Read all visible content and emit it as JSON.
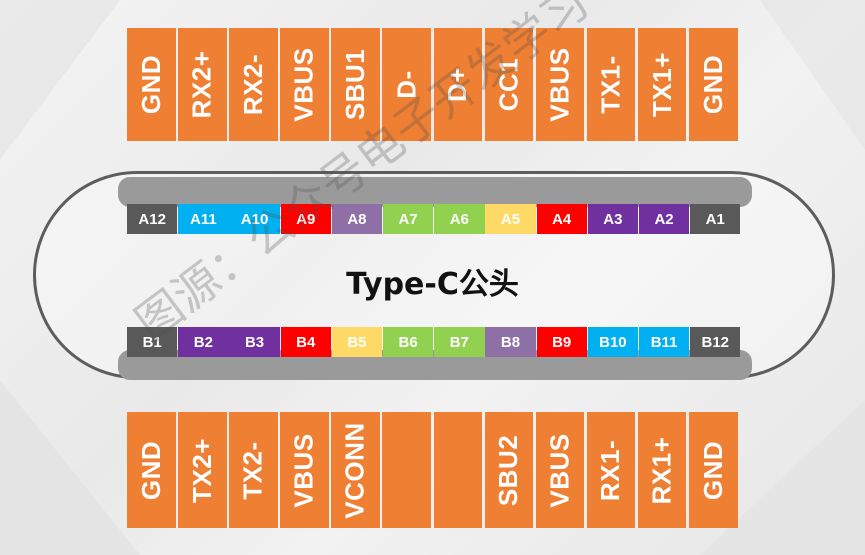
{
  "top_labels": [
    "GND",
    "RX2+",
    "RX2-",
    "VBUS",
    "SBU1",
    "D-",
    "D+",
    "CC1",
    "VBUS",
    "TX1-",
    "TX1+",
    "GND"
  ],
  "bottom_labels": [
    "GND",
    "TX2+",
    "TX2-",
    "VBUS",
    "VCONN",
    "",
    "",
    "SBU2",
    "VBUS",
    "RX1-",
    "RX1+",
    "GND"
  ],
  "pins_a": [
    {
      "label": "A12",
      "color": "#595959"
    },
    {
      "label": "A11",
      "color": "#00b0f0"
    },
    {
      "label": "A10",
      "color": "#00b0f0"
    },
    {
      "label": "A9",
      "color": "#ff0000"
    },
    {
      "label": "A8",
      "color": "#8e6fa6"
    },
    {
      "label": "A7",
      "color": "#92d050"
    },
    {
      "label": "A6",
      "color": "#92d050"
    },
    {
      "label": "A5",
      "color": "#ffd966"
    },
    {
      "label": "A4",
      "color": "#ff0000"
    },
    {
      "label": "A3",
      "color": "#7030a0"
    },
    {
      "label": "A2",
      "color": "#7030a0"
    },
    {
      "label": "A1",
      "color": "#595959"
    }
  ],
  "pins_b": [
    {
      "label": "B1",
      "color": "#595959"
    },
    {
      "label": "B2",
      "color": "#7030a0"
    },
    {
      "label": "B3",
      "color": "#7030a0"
    },
    {
      "label": "B4",
      "color": "#ff0000"
    },
    {
      "label": "B5",
      "color": "#ffd966"
    },
    {
      "label": "B6",
      "color": "#92d050"
    },
    {
      "label": "B7",
      "color": "#92d050"
    },
    {
      "label": "B8",
      "color": "#8e6fa6"
    },
    {
      "label": "B9",
      "color": "#ff0000"
    },
    {
      "label": "B10",
      "color": "#00b0f0"
    },
    {
      "label": "B11",
      "color": "#00b0f0"
    },
    {
      "label": "B12",
      "color": "#595959"
    }
  ],
  "title": "Type-C公头",
  "watermark": "图源：公众号电子开发学习",
  "colors": {
    "label_bg": "#ee7f33",
    "outline": "#5d5d5d",
    "bar": "#9a9a9a"
  }
}
